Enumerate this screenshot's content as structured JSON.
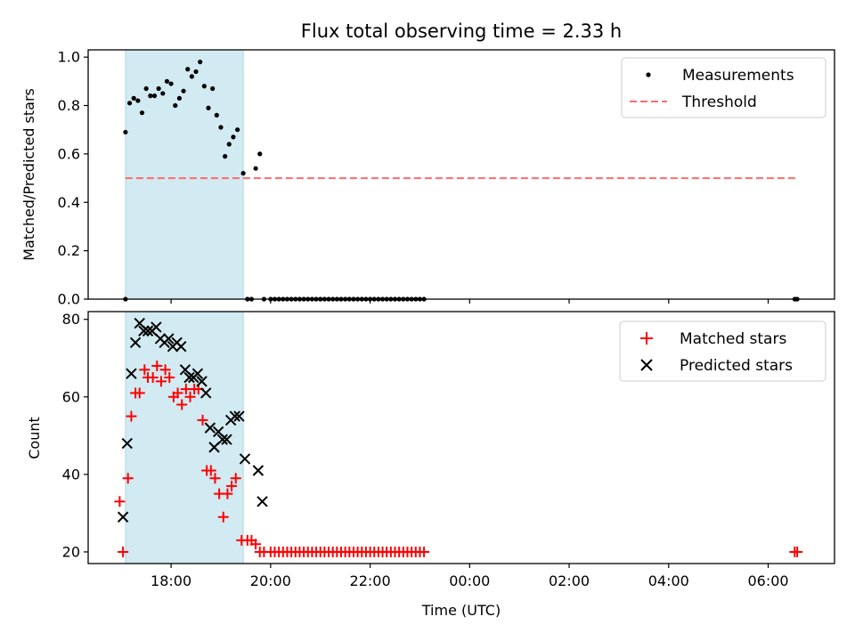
{
  "title": "Flux total observing time = 2.33 h",
  "colors": {
    "shade": "#add8e6",
    "measurements": "#000000",
    "threshold": "#ff6b6b",
    "matched": "#ff0000",
    "predicted": "#000000"
  },
  "chart_data": [
    {
      "type": "scatter",
      "ylabel": "Matched/Predicted stars",
      "xlabel": "",
      "ylim": [
        0,
        1.03
      ],
      "yticks": [
        0.0,
        0.2,
        0.4,
        0.6,
        0.8,
        1.0
      ],
      "ytick_labels": [
        "0.0",
        "0.2",
        "0.4",
        "0.6",
        "0.8",
        "1.0"
      ],
      "xlim": [
        "16:20",
        "07:20"
      ],
      "shaded_span": [
        "17:05",
        "19:27"
      ],
      "legend_placement": "upper right",
      "grid": false,
      "series": [
        {
          "name": "Measurements",
          "marker": "dot",
          "points": [
            [
              "17:05",
              0.0
            ],
            [
              "17:05",
              0.69
            ],
            [
              "17:10",
              0.81
            ],
            [
              "17:15",
              0.83
            ],
            [
              "17:20",
              0.82
            ],
            [
              "17:25",
              0.77
            ],
            [
              "17:30",
              0.87
            ],
            [
              "17:35",
              0.84
            ],
            [
              "17:40",
              0.84
            ],
            [
              "17:45",
              0.87
            ],
            [
              "17:50",
              0.85
            ],
            [
              "17:55",
              0.9
            ],
            [
              "18:00",
              0.89
            ],
            [
              "18:05",
              0.8
            ],
            [
              "18:10",
              0.83
            ],
            [
              "18:15",
              0.86
            ],
            [
              "18:20",
              0.95
            ],
            [
              "18:25",
              0.92
            ],
            [
              "18:30",
              0.94
            ],
            [
              "18:35",
              0.98
            ],
            [
              "18:40",
              0.88
            ],
            [
              "18:45",
              0.79
            ],
            [
              "18:50",
              0.87
            ],
            [
              "18:55",
              0.76
            ],
            [
              "19:00",
              0.71
            ],
            [
              "19:05",
              0.59
            ],
            [
              "19:10",
              0.64
            ],
            [
              "19:15",
              0.67
            ],
            [
              "19:20",
              0.7
            ],
            [
              "19:27",
              0.52
            ],
            [
              "19:32",
              0.0
            ],
            [
              "19:37",
              0.0
            ],
            [
              "19:42",
              0.54
            ],
            [
              "19:47",
              0.6
            ],
            [
              "19:52",
              0.0
            ],
            [
              "20:00",
              0.0
            ],
            [
              "20:05",
              0.0
            ],
            [
              "20:10",
              0.0
            ],
            [
              "20:15",
              0.0
            ],
            [
              "20:20",
              0.0
            ],
            [
              "20:25",
              0.0
            ],
            [
              "20:30",
              0.0
            ],
            [
              "20:35",
              0.0
            ],
            [
              "20:40",
              0.0
            ],
            [
              "20:45",
              0.0
            ],
            [
              "20:50",
              0.0
            ],
            [
              "20:55",
              0.0
            ],
            [
              "21:00",
              0.0
            ],
            [
              "21:05",
              0.0
            ],
            [
              "21:10",
              0.0
            ],
            [
              "21:15",
              0.0
            ],
            [
              "21:20",
              0.0
            ],
            [
              "21:25",
              0.0
            ],
            [
              "21:30",
              0.0
            ],
            [
              "21:35",
              0.0
            ],
            [
              "21:40",
              0.0
            ],
            [
              "21:45",
              0.0
            ],
            [
              "21:50",
              0.0
            ],
            [
              "21:55",
              0.0
            ],
            [
              "22:00",
              0.0
            ],
            [
              "22:05",
              0.0
            ],
            [
              "22:10",
              0.0
            ],
            [
              "22:15",
              0.0
            ],
            [
              "22:20",
              0.0
            ],
            [
              "22:25",
              0.0
            ],
            [
              "22:30",
              0.0
            ],
            [
              "22:35",
              0.0
            ],
            [
              "22:40",
              0.0
            ],
            [
              "22:45",
              0.0
            ],
            [
              "22:50",
              0.0
            ],
            [
              "22:55",
              0.0
            ],
            [
              "23:00",
              0.0
            ],
            [
              "23:05",
              0.0
            ],
            [
              "06:32",
              0.0
            ],
            [
              "06:35",
              0.0
            ]
          ]
        },
        {
          "name": "Threshold",
          "marker": "dashed-line",
          "points": [
            [
              "17:05",
              0.5
            ],
            [
              "06:35",
              0.5
            ]
          ]
        }
      ]
    },
    {
      "type": "scatter",
      "ylabel": "Count",
      "xlabel": "Time (UTC)",
      "ylim": [
        17,
        82
      ],
      "yticks": [
        20,
        40,
        60,
        80
      ],
      "ytick_labels": [
        "20",
        "40",
        "60",
        "80"
      ],
      "xlim": [
        "16:20",
        "07:20"
      ],
      "xticks": [
        "18:00",
        "20:00",
        "22:00",
        "00:00",
        "02:00",
        "04:00",
        "06:00"
      ],
      "shaded_span": [
        "17:05",
        "19:27"
      ],
      "legend_placement": "upper right",
      "grid": false,
      "series": [
        {
          "name": "Matched stars",
          "marker": "plus",
          "points": [
            [
              "16:58",
              33
            ],
            [
              "17:02",
              20
            ],
            [
              "17:08",
              39
            ],
            [
              "17:12",
              55
            ],
            [
              "17:17",
              61
            ],
            [
              "17:22",
              61
            ],
            [
              "17:28",
              67
            ],
            [
              "17:32",
              65
            ],
            [
              "17:38",
              65
            ],
            [
              "17:43",
              68
            ],
            [
              "17:48",
              64
            ],
            [
              "17:53",
              67
            ],
            [
              "17:58",
              65
            ],
            [
              "18:03",
              60
            ],
            [
              "18:08",
              61
            ],
            [
              "18:13",
              58
            ],
            [
              "18:18",
              62
            ],
            [
              "18:23",
              60
            ],
            [
              "18:28",
              62
            ],
            [
              "18:33",
              62
            ],
            [
              "18:38",
              54
            ],
            [
              "18:43",
              41
            ],
            [
              "18:48",
              41
            ],
            [
              "18:53",
              39
            ],
            [
              "18:58",
              35
            ],
            [
              "19:03",
              29
            ],
            [
              "19:08",
              35
            ],
            [
              "19:13",
              37
            ],
            [
              "19:18",
              39
            ],
            [
              "19:25",
              23
            ],
            [
              "19:32",
              23
            ],
            [
              "19:37",
              23
            ],
            [
              "19:42",
              22
            ],
            [
              "19:47",
              20
            ],
            [
              "19:52",
              20
            ],
            [
              "20:00",
              20
            ],
            [
              "20:05",
              20
            ],
            [
              "20:10",
              20
            ],
            [
              "20:15",
              20
            ],
            [
              "20:20",
              20
            ],
            [
              "20:25",
              20
            ],
            [
              "20:30",
              20
            ],
            [
              "20:35",
              20
            ],
            [
              "20:40",
              20
            ],
            [
              "20:45",
              20
            ],
            [
              "20:50",
              20
            ],
            [
              "20:55",
              20
            ],
            [
              "21:00",
              20
            ],
            [
              "21:05",
              20
            ],
            [
              "21:10",
              20
            ],
            [
              "21:15",
              20
            ],
            [
              "21:20",
              20
            ],
            [
              "21:25",
              20
            ],
            [
              "21:30",
              20
            ],
            [
              "21:35",
              20
            ],
            [
              "21:40",
              20
            ],
            [
              "21:45",
              20
            ],
            [
              "21:50",
              20
            ],
            [
              "21:55",
              20
            ],
            [
              "22:00",
              20
            ],
            [
              "22:05",
              20
            ],
            [
              "22:10",
              20
            ],
            [
              "22:15",
              20
            ],
            [
              "22:20",
              20
            ],
            [
              "22:25",
              20
            ],
            [
              "22:30",
              20
            ],
            [
              "22:35",
              20
            ],
            [
              "22:40",
              20
            ],
            [
              "22:45",
              20
            ],
            [
              "22:50",
              20
            ],
            [
              "22:55",
              20
            ],
            [
              "23:00",
              20
            ],
            [
              "23:05",
              20
            ],
            [
              "06:32",
              20
            ],
            [
              "06:35",
              20
            ]
          ]
        },
        {
          "name": "Predicted stars",
          "marker": "x",
          "points": [
            [
              "17:02",
              29
            ],
            [
              "17:07",
              48
            ],
            [
              "17:12",
              66
            ],
            [
              "17:17",
              74
            ],
            [
              "17:22",
              79
            ],
            [
              "17:27",
              77
            ],
            [
              "17:32",
              77
            ],
            [
              "17:37",
              77
            ],
            [
              "17:42",
              78
            ],
            [
              "17:47",
              75
            ],
            [
              "17:52",
              74
            ],
            [
              "17:57",
              75
            ],
            [
              "18:02",
              73
            ],
            [
              "18:07",
              74
            ],
            [
              "18:12",
              73
            ],
            [
              "18:17",
              67
            ],
            [
              "18:22",
              65
            ],
            [
              "18:27",
              65
            ],
            [
              "18:32",
              66
            ],
            [
              "18:37",
              64
            ],
            [
              "18:42",
              61
            ],
            [
              "18:47",
              52
            ],
            [
              "18:52",
              47
            ],
            [
              "18:57",
              51
            ],
            [
              "19:02",
              49
            ],
            [
              "19:07",
              49
            ],
            [
              "19:12",
              54
            ],
            [
              "19:17",
              55
            ],
            [
              "19:22",
              55
            ],
            [
              "19:29",
              44
            ],
            [
              "19:45",
              41
            ],
            [
              "19:50",
              33
            ]
          ]
        }
      ]
    }
  ]
}
